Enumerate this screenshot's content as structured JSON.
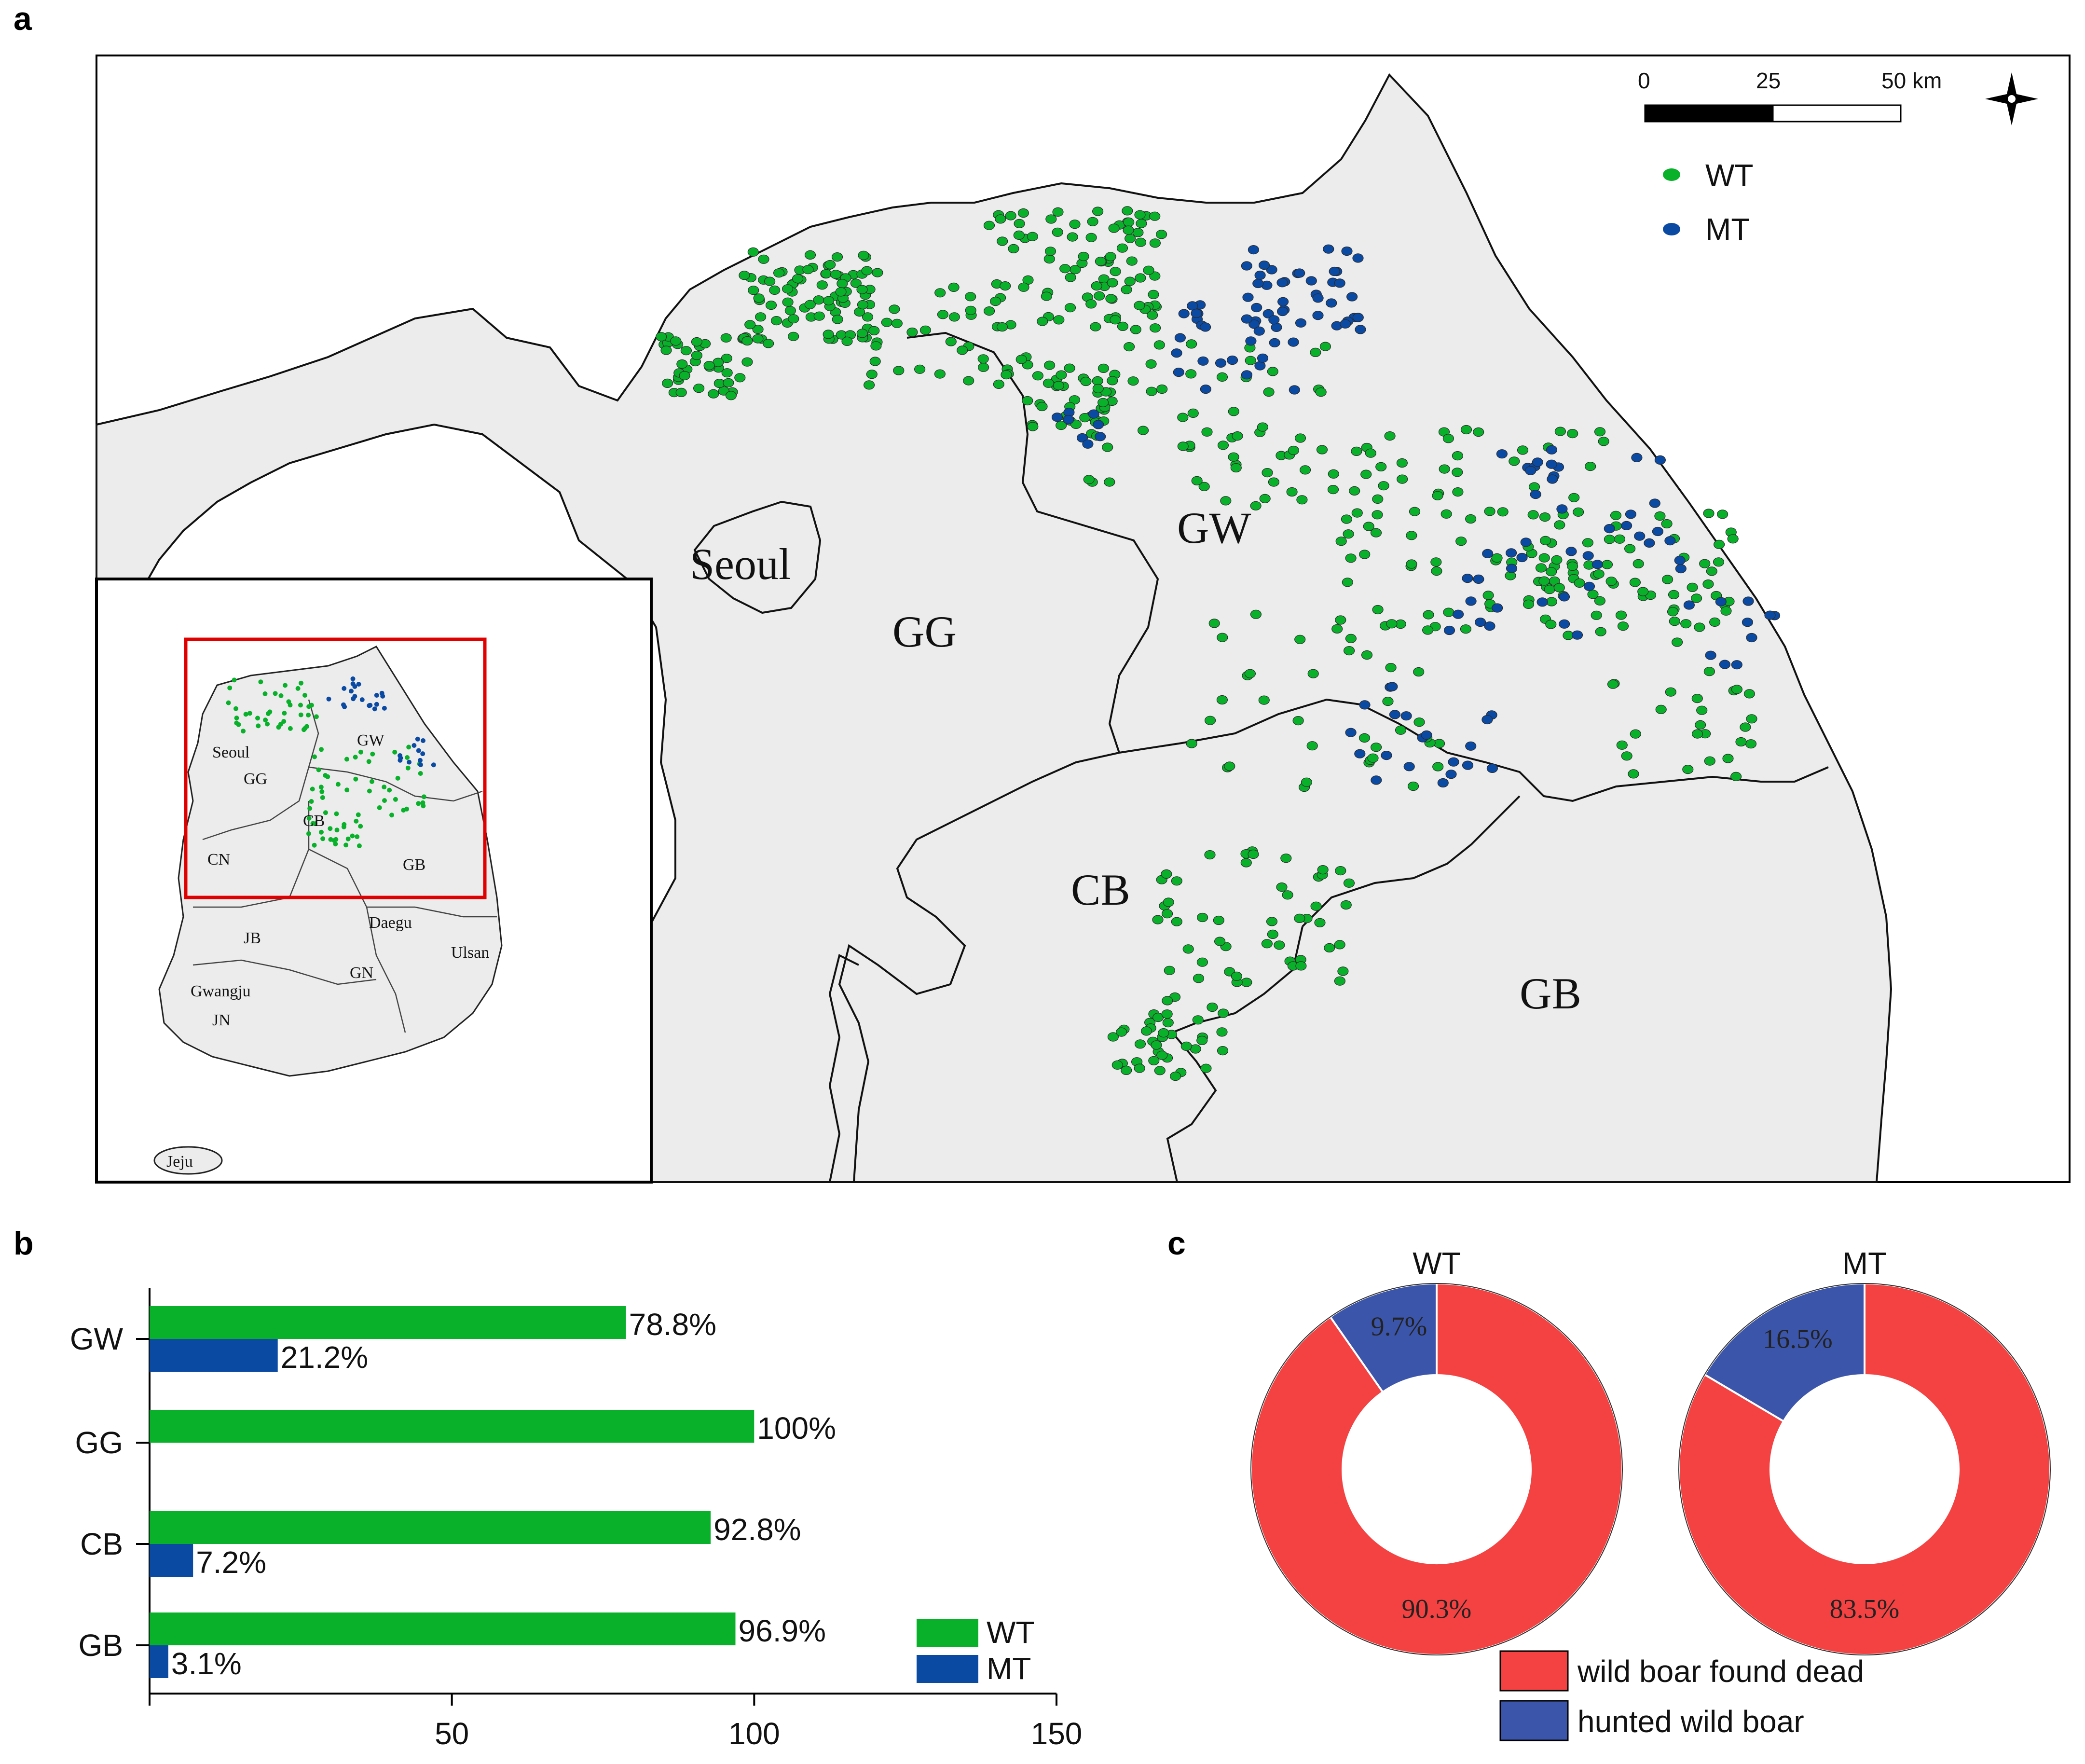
{
  "panels": {
    "a": "a",
    "b": "b",
    "c": "c"
  },
  "colors": {
    "wt": "#09b12a",
    "mt": "#0b4aa3",
    "found_dead": "#f44141",
    "hunted": "#3b55aa",
    "land": "#ececec",
    "inset_box": "#e00000"
  },
  "map": {
    "region_labels": [
      "Seoul",
      "GG",
      "GW",
      "CB",
      "GB"
    ],
    "scale_bar": {
      "ticks": [
        "0",
        "25",
        "50 km"
      ]
    },
    "north_arrow_icon": "compass-star-icon",
    "legend": [
      {
        "label": "WT",
        "color": "#09b12a"
      },
      {
        "label": "MT",
        "color": "#0b4aa3"
      }
    ],
    "inset": {
      "region_labels": [
        "Seoul",
        "GG",
        "GW",
        "CB",
        "CN",
        "GB",
        "JB",
        "Daegu",
        "Ulsan",
        "GN",
        "Gwangju",
        "JN",
        "Jeju"
      ]
    }
  },
  "chart_data": [
    {
      "type": "bar",
      "orientation": "horizontal",
      "categories": [
        "GW",
        "GG",
        "CB",
        "GB"
      ],
      "series": [
        {
          "name": "WT",
          "values": [
            78.8,
            100,
            92.8,
            96.9
          ],
          "labels": [
            "78.8%",
            "100%",
            "92.8%",
            "96.9%"
          ],
          "color": "#09b12a"
        },
        {
          "name": "MT",
          "values": [
            21.2,
            0,
            7.2,
            3.1
          ],
          "labels": [
            "21.2%",
            "",
            "7.2%",
            "3.1%"
          ],
          "color": "#0b4aa3"
        }
      ],
      "xlim": [
        0,
        150
      ],
      "xticks": [
        "50",
        "100",
        "150"
      ],
      "xtick_values": [
        50,
        100,
        150
      ],
      "legend_position": "bottom-right",
      "grid": false
    },
    {
      "type": "pie",
      "donut": true,
      "title": "WT",
      "slices": [
        {
          "name": "wild boar found dead",
          "value": 90.3,
          "label": "90.3%",
          "color": "#f44141"
        },
        {
          "name": "hunted wild boar",
          "value": 9.7,
          "label": "9.7%",
          "color": "#3b55aa"
        }
      ]
    },
    {
      "type": "pie",
      "donut": true,
      "title": "MT",
      "slices": [
        {
          "name": "wild boar found dead",
          "value": 83.5,
          "label": "83.5%",
          "color": "#f44141"
        },
        {
          "name": "hunted wild boar",
          "value": 16.5,
          "label": "16.5%",
          "color": "#3b55aa"
        }
      ]
    }
  ],
  "pie_legend": [
    {
      "label": "wild boar found dead",
      "color": "#f44141"
    },
    {
      "label": "hunted wild boar",
      "color": "#3b55aa"
    }
  ]
}
